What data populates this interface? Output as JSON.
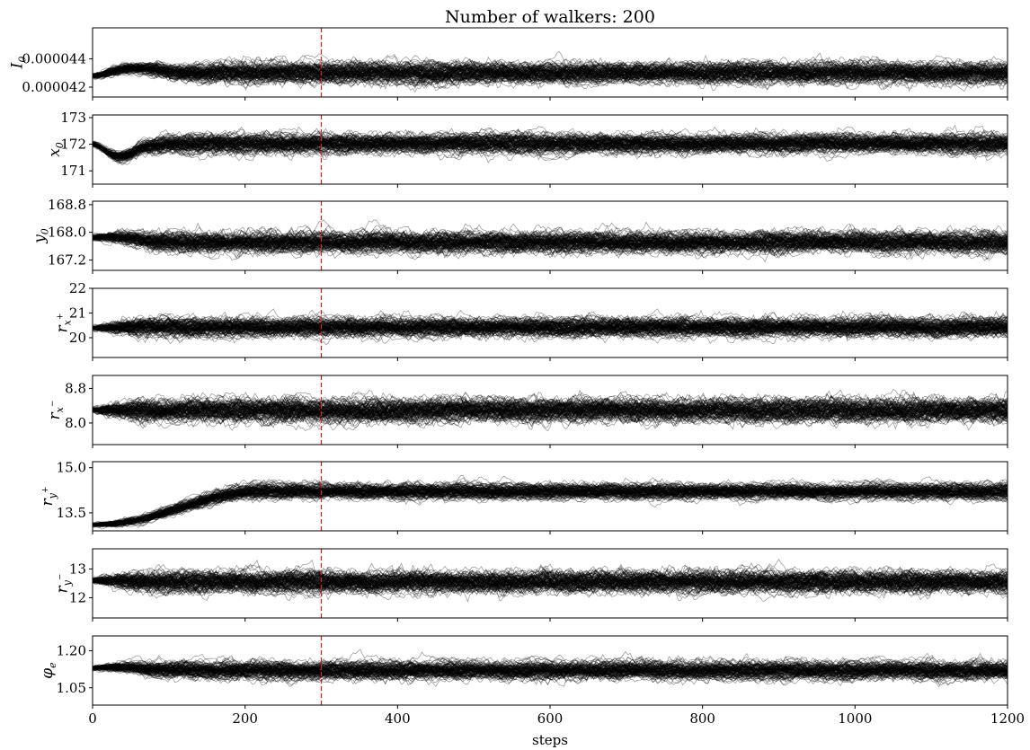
{
  "chart_data": {
    "type": "line",
    "title": "Number of walkers: 200",
    "xlabel": "steps",
    "xlim": [
      0,
      1200
    ],
    "xticks": [
      "0",
      "200",
      "400",
      "600",
      "800",
      "1000",
      "1200"
    ],
    "xtick_values": [
      0,
      200,
      400,
      600,
      800,
      1000,
      1200
    ],
    "n_walkers": 200,
    "n_steps": 1200,
    "burn_in_marker": {
      "x": 300,
      "style": "dashed",
      "color": "#d62728"
    },
    "trace_color": "#000000",
    "panels": [
      {
        "label_main": "I",
        "label_sub": "0",
        "label_sup": "",
        "ylim": [
          4.13e-05,
          4.62e-05
        ],
        "yticks": [
          "0.000044",
          "0.000042"
        ],
        "ytick_values": [
          4.4e-05,
          4.2e-05
        ],
        "init": 4.28e-05,
        "equilibrium_mean": 4.3e-05,
        "equilibrium_spread": 6e-07,
        "transient_peak": 4.36e-05,
        "transient_step": 50,
        "settle_steps": 150
      },
      {
        "label_main": "x",
        "label_sub": "0",
        "label_sup": "",
        "ylim": [
          170.5,
          173.1
        ],
        "yticks": [
          "173",
          "172",
          "171"
        ],
        "ytick_values": [
          173,
          172,
          171
        ],
        "init": 172.0,
        "equilibrium_mean": 172.0,
        "equilibrium_spread": 0.3,
        "transient_peak": 171.2,
        "transient_step": 30,
        "settle_steps": 110
      },
      {
        "label_main": "y",
        "label_sub": "0",
        "label_sup": "",
        "ylim": [
          166.9,
          168.9
        ],
        "yticks": [
          "168.8",
          "168.0",
          "167.2"
        ],
        "ytick_values": [
          168.8,
          168.0,
          167.2
        ],
        "init": 167.85,
        "equilibrium_mean": 167.7,
        "equilibrium_spread": 0.25,
        "transient_peak": 167.9,
        "transient_step": 40,
        "settle_steps": 90
      },
      {
        "label_main": "r",
        "label_sub": "x",
        "label_sup": "+",
        "ylim": [
          19.2,
          22.0
        ],
        "yticks": [
          "22",
          "21",
          "20"
        ],
        "ytick_values": [
          22,
          21,
          20
        ],
        "init": 20.4,
        "equilibrium_mean": 20.45,
        "equilibrium_spread": 0.32,
        "transient_peak": 20.4,
        "transient_step": 20,
        "settle_steps": 60
      },
      {
        "label_main": "r",
        "label_sub": "x",
        "label_sup": "−",
        "ylim": [
          7.5,
          9.1
        ],
        "yticks": [
          "8.8",
          "8.0"
        ],
        "ytick_values": [
          8.8,
          8.0
        ],
        "init": 8.3,
        "equilibrium_mean": 8.3,
        "equilibrium_spread": 0.22,
        "transient_peak": 8.3,
        "transient_step": 20,
        "settle_steps": 60
      },
      {
        "label_main": "r",
        "label_sub": "y",
        "label_sup": "+",
        "ylim": [
          12.9,
          15.2
        ],
        "yticks": [
          "15.0",
          "13.5"
        ],
        "ytick_values": [
          15.0,
          13.5
        ],
        "init": 13.1,
        "equilibrium_mean": 14.2,
        "equilibrium_spread": 0.22,
        "transient_peak": 13.1,
        "transient_step": 10,
        "settle_steps": 200
      },
      {
        "label_main": "r",
        "label_sub": "y",
        "label_sup": "−",
        "ylim": [
          11.3,
          13.7
        ],
        "yticks": [
          "13",
          "12"
        ],
        "ytick_values": [
          13,
          12
        ],
        "init": 12.6,
        "equilibrium_mean": 12.55,
        "equilibrium_spread": 0.32,
        "transient_peak": 12.6,
        "transient_step": 20,
        "settle_steps": 60
      },
      {
        "label_main": "φ",
        "label_sub": "e",
        "label_sup": "",
        "ylim": [
          0.98,
          1.26
        ],
        "yticks": [
          "1.20",
          "1.05"
        ],
        "ytick_values": [
          1.2,
          1.05
        ],
        "init": 1.13,
        "equilibrium_mean": 1.12,
        "equilibrium_spread": 0.03,
        "transient_peak": 1.14,
        "transient_step": 40,
        "settle_steps": 100
      }
    ]
  }
}
